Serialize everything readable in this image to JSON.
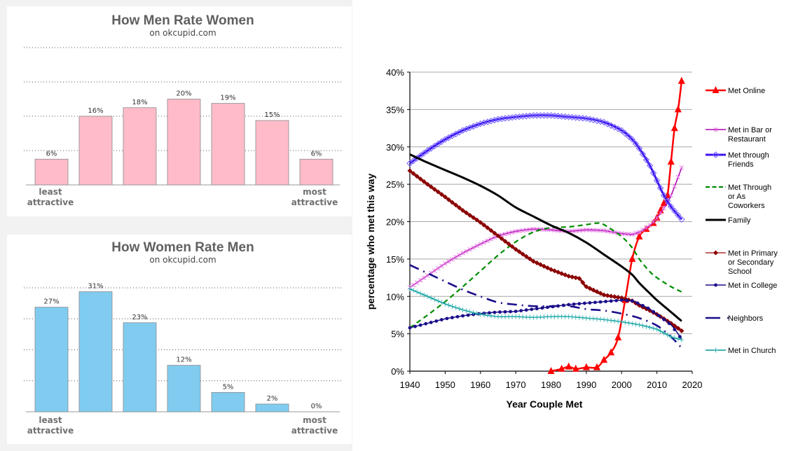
{
  "chart_data": [
    {
      "type": "bar",
      "title": "How Men Rate Women",
      "subtitle": "on okcupid.com",
      "categories": [
        "1",
        "2",
        "3",
        "4",
        "5",
        "6",
        "7"
      ],
      "values": [
        6,
        16,
        18,
        20,
        19,
        15,
        6
      ],
      "value_labels": [
        "6%",
        "16%",
        "18%",
        "20%",
        "19%",
        "15%",
        "6%"
      ],
      "end_labels": {
        "left": [
          "least",
          "attractive"
        ],
        "right": [
          "most",
          "attractive"
        ]
      },
      "bar_color": "#ffbbc8",
      "ylim": [
        0,
        32
      ],
      "grid": true,
      "grid_values": [
        8,
        16,
        24,
        32
      ]
    },
    {
      "type": "bar",
      "title": "How Women Rate Men",
      "subtitle": "on okcupid.com",
      "categories": [
        "1",
        "2",
        "3",
        "4",
        "5",
        "6",
        "7"
      ],
      "values": [
        27,
        31,
        23,
        12,
        5,
        2,
        0
      ],
      "value_labels": [
        "27%",
        "31%",
        "23%",
        "12%",
        "5%",
        "2%",
        "0%"
      ],
      "end_labels": {
        "left": [
          "least",
          "attractive"
        ],
        "right": [
          "most",
          "attractive"
        ]
      },
      "bar_color": "#80ccf0",
      "ylim": [
        0,
        32
      ],
      "grid": true,
      "grid_values": [
        8,
        16,
        24,
        32
      ]
    },
    {
      "type": "line",
      "title": "",
      "xlabel": "Year Couple Met",
      "ylabel": "percentage who met this way",
      "xlim": [
        1940,
        2020
      ],
      "ylim": [
        0,
        40
      ],
      "xticks": [
        "1940",
        "1950",
        "1960",
        "1970",
        "1980",
        "1990",
        "2000",
        "2010",
        "2020"
      ],
      "yticks": [
        "0%",
        "5%",
        "10%",
        "15%",
        "20%",
        "25%",
        "30%",
        "35%",
        "40%"
      ],
      "grid": true,
      "legend_position": "right",
      "series": [
        {
          "name": "Met Online",
          "color": "#ff0000",
          "style": "solid",
          "marker": "triangle",
          "x": [
            1980,
            1983,
            1985,
            1987,
            1990,
            1993,
            1995,
            1997,
            1999,
            2001,
            2003,
            2005,
            2007,
            2009,
            2010,
            2011,
            2012,
            2013,
            2014,
            2015,
            2016,
            2017
          ],
          "y": [
            0,
            0.3,
            0.6,
            0.3,
            0.5,
            0.5,
            1.5,
            2.5,
            4.5,
            9.5,
            15,
            18,
            19,
            19.8,
            20.5,
            21.5,
            22.5,
            23.5,
            28,
            32.5,
            35,
            38.8
          ]
        },
        {
          "name": "Met in Bar or Restaurant",
          "color": "#b000b0",
          "style": "solid",
          "marker": "asterisk",
          "x": [
            1940,
            1945,
            1950,
            1955,
            1960,
            1965,
            1970,
            1975,
            1980,
            1985,
            1990,
            1995,
            2000,
            2003,
            2005,
            2008,
            2010,
            2012,
            2014,
            2017
          ],
          "y": [
            11.2,
            12.8,
            14.4,
            15.8,
            17.0,
            18.1,
            18.7,
            19.0,
            18.9,
            18.7,
            18.9,
            18.8,
            18.4,
            18.3,
            18.6,
            19.5,
            20.5,
            21.8,
            23.5,
            27.2
          ]
        },
        {
          "name": "Met through Friends",
          "color": "#4010f0",
          "style": "solid",
          "marker": "diamond",
          "x": [
            1940,
            1945,
            1950,
            1955,
            1960,
            1965,
            1970,
            1975,
            1980,
            1985,
            1990,
            1995,
            2000,
            2003,
            2005,
            2008,
            2010,
            2012,
            2014,
            2017
          ],
          "y": [
            27.8,
            29.5,
            31.0,
            32.2,
            33.1,
            33.7,
            34.0,
            34.2,
            34.2,
            34.0,
            33.8,
            33.3,
            32.2,
            31.0,
            29.8,
            27.5,
            25.5,
            23.5,
            22.0,
            20.3
          ]
        },
        {
          "name": "Met Through or As Coworkers",
          "color": "#008c00",
          "style": "dashed",
          "marker": "none",
          "x": [
            1940,
            1945,
            1950,
            1955,
            1960,
            1965,
            1970,
            1975,
            1980,
            1985,
            1990,
            1993,
            1995,
            2000,
            2003,
            2005,
            2008,
            2010,
            2014,
            2017
          ],
          "y": [
            5.8,
            7.5,
            9.3,
            11.3,
            13.4,
            15.5,
            17.3,
            18.6,
            19.2,
            19.3,
            19.6,
            19.8,
            19.6,
            18.0,
            16.5,
            15.0,
            13.3,
            12.5,
            11.3,
            10.6
          ]
        },
        {
          "name": "Family",
          "color": "#000000",
          "style": "solid-thick",
          "marker": "none",
          "x": [
            1940,
            1945,
            1950,
            1955,
            1960,
            1965,
            1970,
            1975,
            1980,
            1985,
            1990,
            1995,
            2000,
            2003,
            2005,
            2008,
            2010,
            2014,
            2017
          ],
          "y": [
            29.0,
            27.9,
            26.9,
            25.9,
            24.8,
            23.5,
            21.9,
            20.7,
            19.5,
            18.5,
            17.2,
            15.6,
            14.0,
            12.9,
            11.8,
            10.4,
            9.5,
            7.9,
            6.7
          ]
        },
        {
          "name": "Met in Primary or Secondary School",
          "color": "#8b0000",
          "style": "solid-thick",
          "marker": "diamond-filled",
          "x": [
            1940,
            1945,
            1950,
            1955,
            1960,
            1965,
            1970,
            1975,
            1980,
            1985,
            1988,
            1990,
            1995,
            2000,
            2003,
            2005,
            2008,
            2010,
            2014,
            2017
          ],
          "y": [
            26.8,
            25.0,
            23.3,
            21.5,
            19.9,
            18.1,
            16.3,
            14.7,
            13.6,
            12.7,
            12.4,
            11.3,
            10.2,
            9.8,
            9.4,
            8.8,
            8.1,
            7.6,
            6.4,
            5.4
          ]
        },
        {
          "name": "Met in College",
          "color": "#1a0d8a",
          "style": "solid",
          "marker": "dot",
          "x": [
            1940,
            1945,
            1950,
            1955,
            1960,
            1965,
            1970,
            1975,
            1980,
            1985,
            1990,
            1995,
            2000,
            2003,
            2005,
            2008,
            2010,
            2014,
            2017
          ],
          "y": [
            5.8,
            6.4,
            7.0,
            7.4,
            7.7,
            7.9,
            8.0,
            8.3,
            8.6,
            8.9,
            9.1,
            9.3,
            9.5,
            9.4,
            9.0,
            8.3,
            7.6,
            6.2,
            4.3
          ]
        },
        {
          "name": "Neighbors",
          "color": "#1a0d8a",
          "style": "dashdot",
          "marker": "none",
          "x": [
            1940,
            1945,
            1950,
            1955,
            1960,
            1965,
            1970,
            1975,
            1980,
            1985,
            1990,
            1995,
            2000,
            2005,
            2010,
            2014,
            2017
          ],
          "y": [
            14.2,
            13.1,
            12.0,
            10.9,
            10.0,
            9.2,
            8.9,
            8.7,
            8.7,
            8.7,
            8.3,
            8.1,
            7.7,
            7.1,
            6.1,
            4.6,
            3.1
          ]
        },
        {
          "name": "Met in Church",
          "color": "#009999",
          "style": "solid",
          "marker": "plus",
          "x": [
            1940,
            1945,
            1950,
            1955,
            1960,
            1965,
            1970,
            1975,
            1980,
            1985,
            1990,
            1995,
            2000,
            2005,
            2010,
            2014,
            2017
          ],
          "y": [
            11.0,
            10.0,
            9.0,
            8.2,
            7.6,
            7.3,
            7.3,
            7.2,
            7.3,
            7.3,
            7.1,
            6.9,
            6.6,
            6.2,
            5.6,
            4.6,
            4.2
          ]
        }
      ]
    }
  ]
}
